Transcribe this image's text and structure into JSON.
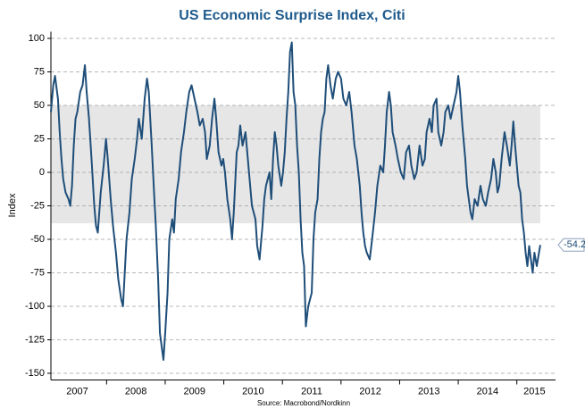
{
  "chart_data": {
    "type": "line",
    "title": "US Economic Surprise Index, Citi",
    "y_label": "Index",
    "source": "Source: Macrobond/Nordkinn",
    "annotation": "-54.2",
    "band": [
      -38,
      50
    ],
    "band_color": "#e6e6e6",
    "grid": true,
    "xlim": [
      2007.05,
      2015.66
    ],
    "ylim": [
      -155,
      105
    ],
    "yticks": [
      -150,
      -125,
      -100,
      -75,
      -50,
      -25,
      0,
      25,
      50,
      75,
      100
    ],
    "xticks": [
      {
        "value": 2007.5,
        "label": "2007"
      },
      {
        "value": 2008.5,
        "label": "2008"
      },
      {
        "value": 2009.5,
        "label": "2009"
      },
      {
        "value": 2010.5,
        "label": "2010"
      },
      {
        "value": 2011.5,
        "label": "2011"
      },
      {
        "value": 2012.5,
        "label": "2012"
      },
      {
        "value": 2013.5,
        "label": "2013"
      },
      {
        "value": 2014.5,
        "label": "2014"
      },
      {
        "value": 2015.3,
        "label": "2015"
      }
    ],
    "xminor": [
      2008,
      2009,
      2010,
      2011,
      2012,
      2013,
      2014,
      2015
    ],
    "x": [
      2007.05,
      2007.09,
      2007.12,
      2007.17,
      2007.2,
      2007.23,
      2007.26,
      2007.3,
      2007.35,
      2007.38,
      2007.41,
      2007.44,
      2007.47,
      2007.5,
      2007.55,
      2007.59,
      2007.63,
      2007.66,
      2007.7,
      2007.75,
      2007.79,
      2007.82,
      2007.85,
      2007.9,
      2007.95,
      2007.99,
      2008.02,
      2008.07,
      2008.11,
      2008.16,
      2008.2,
      2008.25,
      2008.28,
      2008.31,
      2008.34,
      2008.39,
      2008.43,
      2008.48,
      2008.52,
      2008.55,
      2008.6,
      2008.65,
      2008.69,
      2008.72,
      2008.77,
      2008.81,
      2008.84,
      2008.88,
      2008.91,
      2008.94,
      2008.97,
      2009.0,
      2009.04,
      2009.07,
      2009.12,
      2009.15,
      2009.18,
      2009.23,
      2009.27,
      2009.32,
      2009.36,
      2009.41,
      2009.45,
      2009.5,
      2009.55,
      2009.59,
      2009.64,
      2009.68,
      2009.71,
      2009.76,
      2009.8,
      2009.84,
      2009.87,
      2009.91,
      2009.96,
      2009.99,
      2010.02,
      2010.06,
      2010.11,
      2010.14,
      2010.17,
      2010.22,
      2010.25,
      2010.28,
      2010.32,
      2010.37,
      2010.4,
      2010.45,
      2010.48,
      2010.51,
      2010.54,
      2010.57,
      2010.61,
      2010.66,
      2010.69,
      2010.72,
      2010.75,
      2010.78,
      2010.81,
      2010.84,
      2010.87,
      2010.9,
      2010.93,
      2010.98,
      2011.01,
      2011.04,
      2011.07,
      2011.1,
      2011.13,
      2011.16,
      2011.19,
      2011.22,
      2011.25,
      2011.28,
      2011.31,
      2011.34,
      2011.37,
      2011.4,
      2011.44,
      2011.47,
      2011.5,
      2011.53,
      2011.56,
      2011.6,
      2011.63,
      2011.66,
      2011.69,
      2011.72,
      2011.75,
      2011.78,
      2011.82,
      2011.86,
      2011.91,
      2011.95,
      2012.0,
      2012.04,
      2012.09,
      2012.14,
      2012.18,
      2012.23,
      2012.27,
      2012.32,
      2012.35,
      2012.38,
      2012.41,
      2012.44,
      2012.49,
      2012.53,
      2012.58,
      2012.62,
      2012.67,
      2012.72,
      2012.75,
      2012.78,
      2012.82,
      2012.85,
      2012.88,
      2012.93,
      2012.97,
      2013.02,
      2013.07,
      2013.11,
      2013.16,
      2013.2,
      2013.25,
      2013.29,
      2013.34,
      2013.39,
      2013.43,
      2013.46,
      2013.51,
      2013.55,
      2013.58,
      2013.63,
      2013.66,
      2013.71,
      2013.75,
      2013.78,
      2013.83,
      2013.87,
      2013.92,
      2013.97,
      2014.0,
      2014.03,
      2014.07,
      2014.12,
      2014.15,
      2014.18,
      2014.21,
      2014.24,
      2014.28,
      2014.33,
      2014.38,
      2014.42,
      2014.47,
      2014.51,
      2014.56,
      2014.6,
      2014.64,
      2014.67,
      2014.7,
      2014.74,
      2014.79,
      2014.83,
      2014.88,
      2014.91,
      2014.94,
      2014.97,
      2015.0,
      2015.03,
      2015.06,
      2015.09,
      2015.12,
      2015.15,
      2015.18,
      2015.21,
      2015.24,
      2015.27,
      2015.3,
      2015.34,
      2015.37,
      2015.4
    ],
    "series": [
      {
        "name": "US Economic Surprise Index",
        "color": "#1f4e79",
        "values": [
          45,
          65,
          72,
          55,
          30,
          10,
          -5,
          -15,
          -20,
          -25,
          -10,
          20,
          40,
          45,
          60,
          65,
          80,
          60,
          40,
          5,
          -25,
          -40,
          -45,
          -15,
          5,
          25,
          10,
          -20,
          -40,
          -60,
          -80,
          -95,
          -100,
          -75,
          -50,
          -30,
          -5,
          10,
          25,
          40,
          25,
          55,
          70,
          60,
          20,
          -15,
          -40,
          -80,
          -120,
          -130,
          -140,
          -120,
          -90,
          -50,
          -35,
          -45,
          -20,
          -5,
          15,
          30,
          45,
          60,
          65,
          55,
          45,
          35,
          40,
          30,
          10,
          20,
          40,
          55,
          40,
          15,
          5,
          10,
          0,
          -20,
          -35,
          -50,
          -30,
          15,
          20,
          35,
          20,
          30,
          15,
          -10,
          -25,
          -30,
          -35,
          -55,
          -65,
          -40,
          -20,
          -10,
          -5,
          0,
          -20,
          10,
          30,
          20,
          5,
          -10,
          0,
          15,
          40,
          60,
          90,
          97,
          60,
          50,
          20,
          0,
          -35,
          -60,
          -70,
          -115,
          -100,
          -95,
          -90,
          -50,
          -30,
          -20,
          10,
          30,
          40,
          45,
          70,
          80,
          65,
          55,
          70,
          75,
          70,
          55,
          50,
          60,
          45,
          20,
          10,
          -10,
          -30,
          -45,
          -55,
          -60,
          -65,
          -50,
          -30,
          -10,
          5,
          0,
          20,
          45,
          60,
          50,
          30,
          20,
          10,
          0,
          -5,
          15,
          20,
          5,
          -5,
          0,
          20,
          5,
          10,
          30,
          40,
          30,
          50,
          55,
          30,
          20,
          30,
          45,
          50,
          40,
          50,
          60,
          72,
          60,
          35,
          10,
          -10,
          -20,
          -30,
          -35,
          -20,
          -25,
          -10,
          -20,
          -25,
          -15,
          -5,
          10,
          0,
          -15,
          -10,
          10,
          30,
          20,
          5,
          20,
          38,
          20,
          5,
          -10,
          -15,
          -35,
          -45,
          -60,
          -70,
          -55,
          -65,
          -75,
          -60,
          -70,
          -62,
          -54.2
        ]
      }
    ]
  }
}
